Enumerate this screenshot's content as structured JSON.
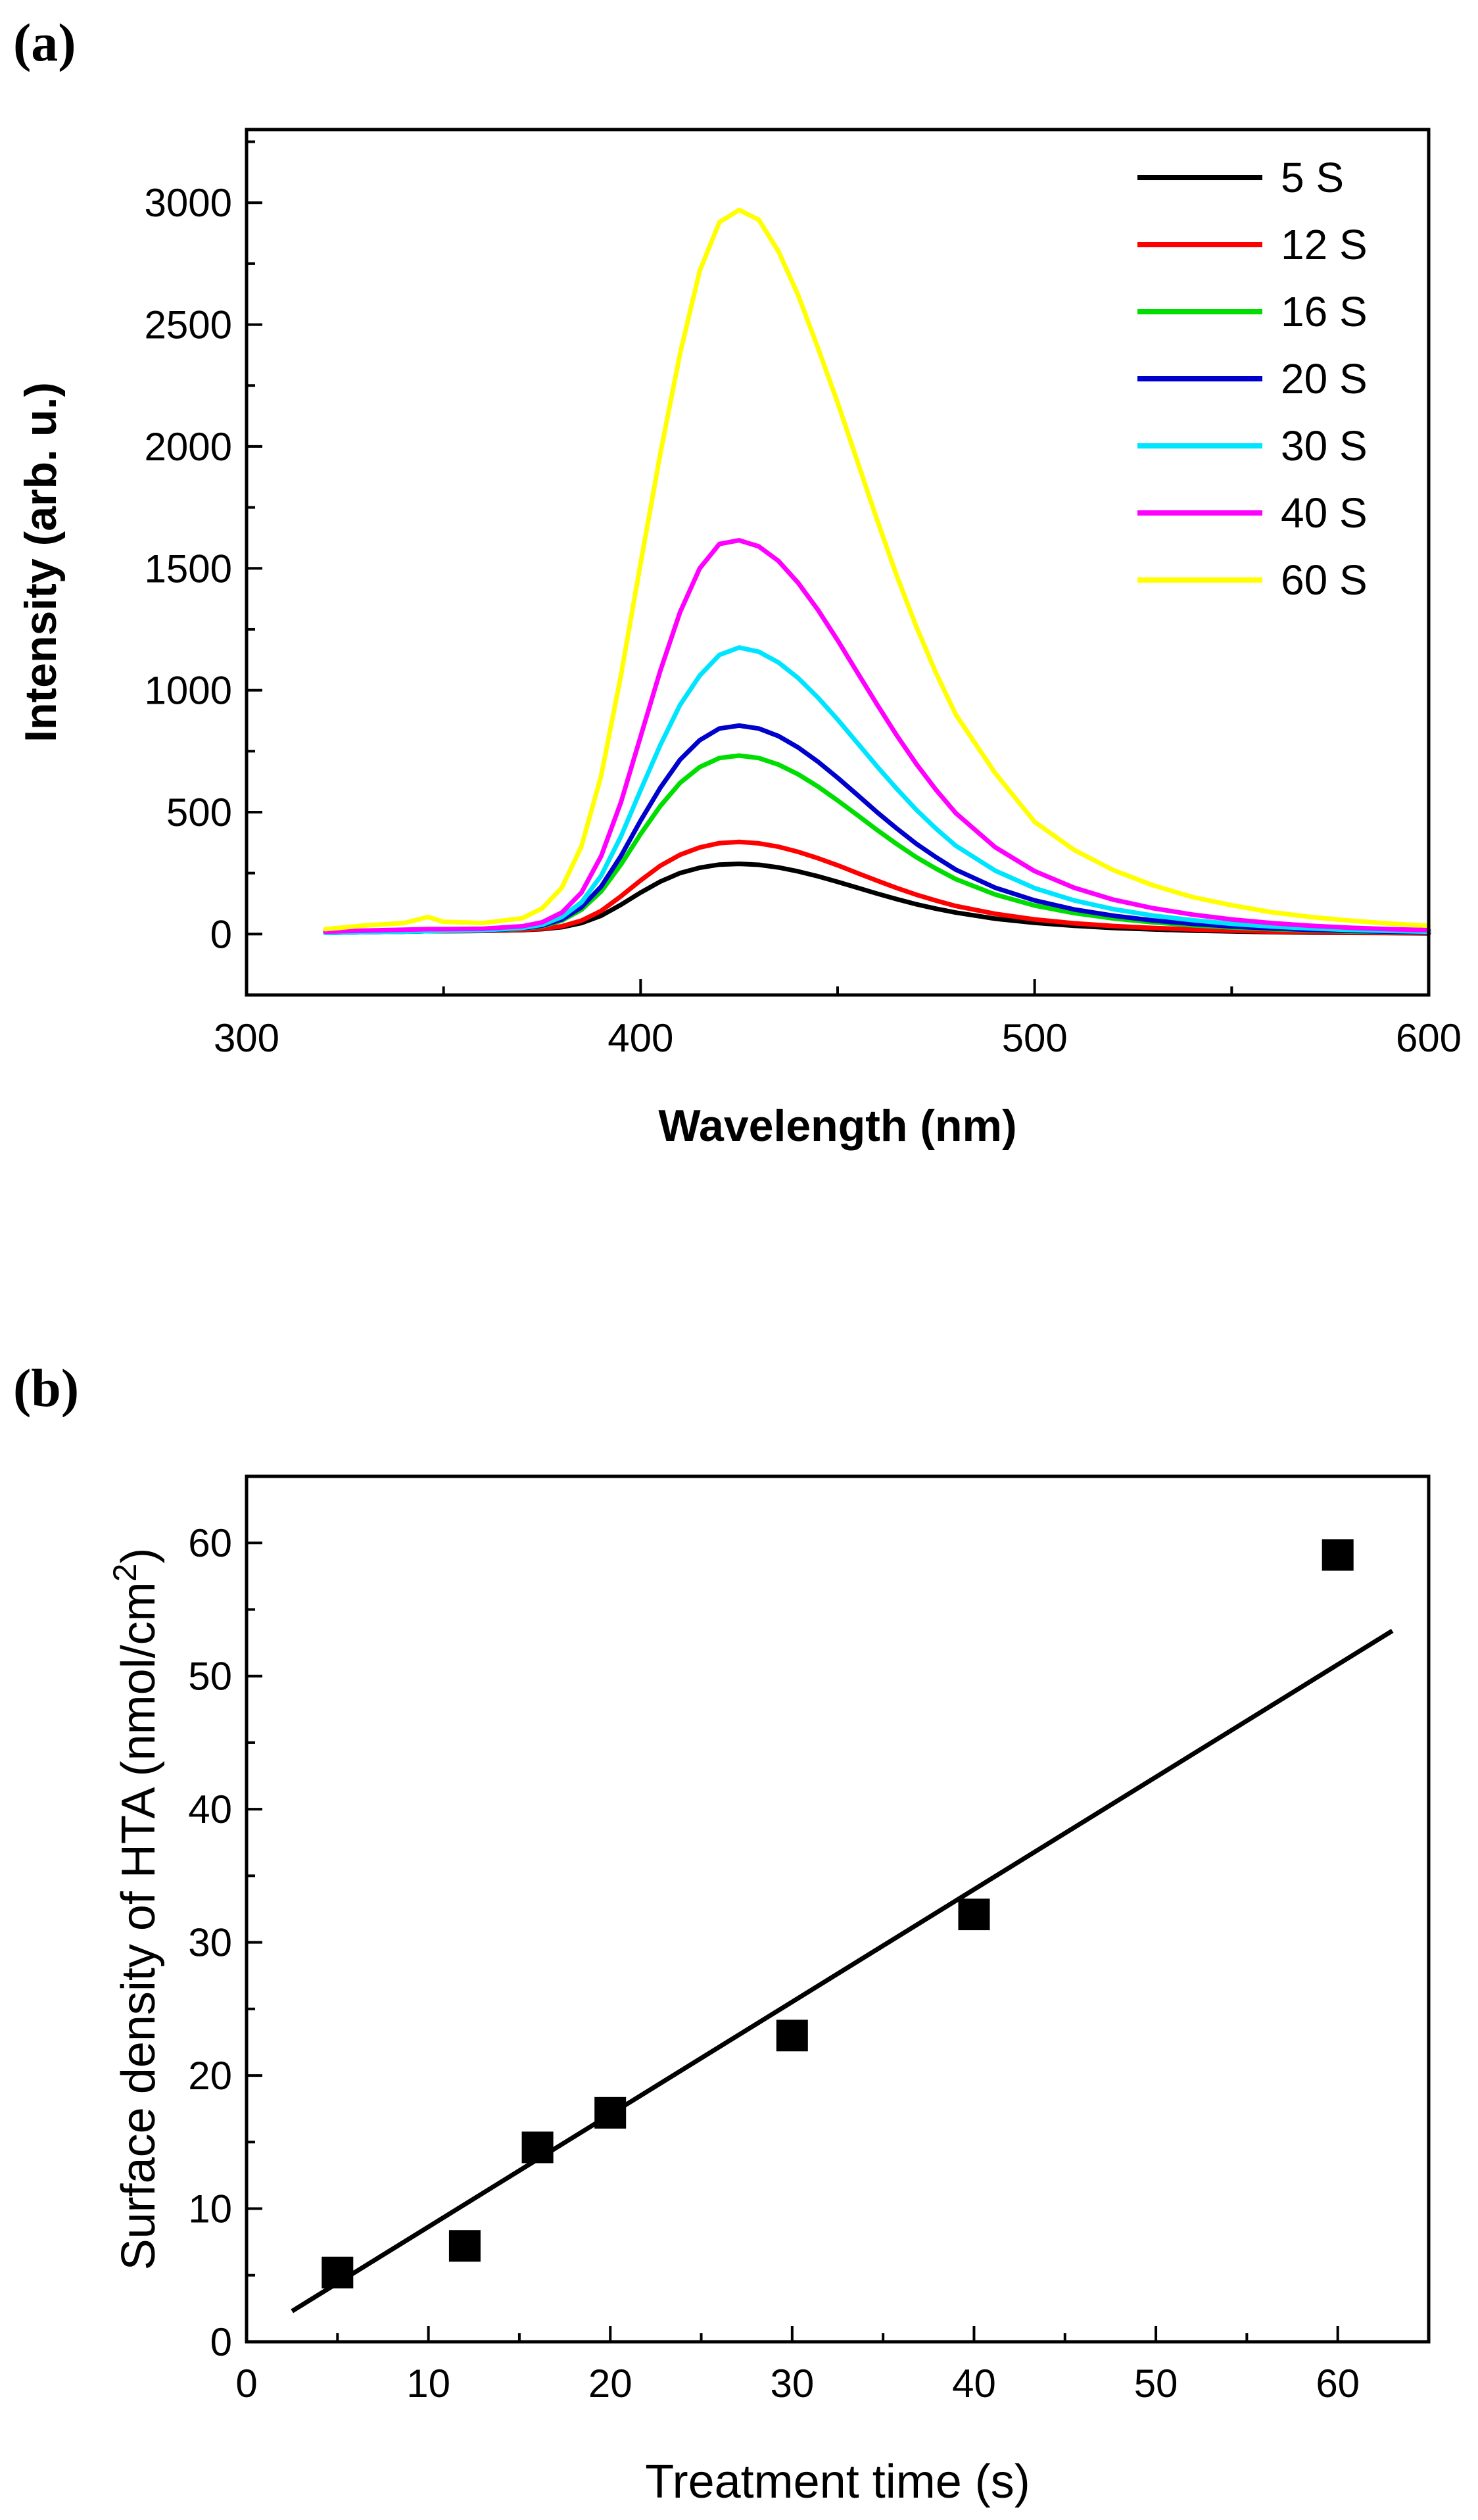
{
  "chart_data": [
    {
      "panel": "(a)",
      "type": "line",
      "title": "",
      "xlabel": "Wavelength (nm)",
      "ylabel": "Intensity (arb. u.)",
      "xlim": [
        300,
        600
      ],
      "ylim": [
        -250,
        3300
      ],
      "xticks": [
        300,
        400,
        500,
        600
      ],
      "xtick_labels": [
        "300",
        "400",
        "500",
        "600"
      ],
      "yticks": [
        0,
        500,
        1000,
        1500,
        2000,
        2500,
        3000
      ],
      "ytick_labels": [
        "0",
        "500",
        "1000",
        "1500",
        "2000",
        "2500",
        "3000"
      ],
      "legend_position": "top-right",
      "grid": false,
      "peak_wavelength": 425,
      "x": [
        320,
        330,
        340,
        346,
        350,
        360,
        370,
        375,
        380,
        385,
        390,
        395,
        400,
        405,
        410,
        415,
        420,
        425,
        430,
        435,
        440,
        445,
        450,
        455,
        460,
        465,
        470,
        475,
        480,
        490,
        500,
        510,
        520,
        530,
        540,
        550,
        560,
        570,
        580,
        590,
        600
      ],
      "series": [
        {
          "name": "5 S",
          "color": "#000000",
          "values": [
            5,
            8,
            10,
            12,
            12,
            13,
            16,
            20,
            28,
            45,
            75,
            120,
            170,
            215,
            250,
            272,
            285,
            288,
            284,
            273,
            257,
            237,
            214,
            190,
            166,
            143,
            122,
            104,
            88,
            63,
            46,
            34,
            25,
            19,
            14,
            11,
            8,
            6,
            5,
            4,
            3
          ]
        },
        {
          "name": "12 S",
          "color": "#ff0000",
          "values": [
            5,
            8,
            10,
            12,
            12,
            13,
            17,
            22,
            32,
            55,
            95,
            155,
            220,
            280,
            325,
            355,
            373,
            378,
            372,
            358,
            337,
            311,
            282,
            250,
            219,
            189,
            161,
            137,
            115,
            83,
            60,
            44,
            33,
            25,
            19,
            14,
            10,
            8,
            6,
            5,
            4
          ]
        },
        {
          "name": "16 S",
          "color": "#00dd00",
          "values": [
            5,
            8,
            10,
            12,
            13,
            15,
            22,
            32,
            55,
            100,
            175,
            285,
            410,
            525,
            620,
            685,
            722,
            732,
            722,
            695,
            655,
            605,
            548,
            488,
            427,
            369,
            315,
            268,
            225,
            162,
            117,
            86,
            64,
            48,
            36,
            27,
            20,
            15,
            11,
            9,
            7
          ]
        },
        {
          "name": "20 S",
          "color": "#0000cc",
          "values": [
            5,
            8,
            10,
            12,
            13,
            15,
            23,
            34,
            60,
            110,
            195,
            320,
            465,
            600,
            715,
            795,
            843,
            855,
            843,
            812,
            765,
            707,
            641,
            571,
            500,
            433,
            370,
            315,
            264,
            190,
            138,
            101,
            75,
            56,
            42,
            31,
            23,
            17,
            13,
            10,
            8
          ]
        },
        {
          "name": "30 S",
          "color": "#00e5ff",
          "values": [
            5,
            8,
            10,
            12,
            13,
            16,
            25,
            38,
            70,
            130,
            240,
            400,
            590,
            775,
            940,
            1060,
            1145,
            1175,
            1158,
            1114,
            1050,
            970,
            880,
            784,
            688,
            596,
            509,
            432,
            362,
            260,
            188,
            138,
            102,
            76,
            57,
            42,
            31,
            23,
            17,
            13,
            10
          ]
        },
        {
          "name": "40 S",
          "color": "#ff00ff",
          "values": [
            10,
            14,
            18,
            20,
            20,
            22,
            32,
            48,
            88,
            170,
            320,
            540,
            810,
            1080,
            1320,
            1500,
            1600,
            1615,
            1590,
            1530,
            1440,
            1330,
            1205,
            1073,
            942,
            815,
            697,
            591,
            496,
            356,
            258,
            190,
            141,
            106,
            80,
            60,
            45,
            34,
            26,
            20,
            16
          ]
        },
        {
          "name": "60 S",
          "color": "#ffff00",
          "values": [
            20,
            35,
            45,
            70,
            50,
            45,
            65,
            105,
            190,
            360,
            650,
            1060,
            1520,
            1970,
            2380,
            2720,
            2920,
            2970,
            2930,
            2800,
            2620,
            2405,
            2180,
            1940,
            1700,
            1470,
            1260,
            1070,
            900,
            660,
            460,
            345,
            262,
            200,
            152,
            118,
            90,
            70,
            55,
            43,
            34
          ]
        }
      ]
    },
    {
      "panel": "(b)",
      "type": "scatter",
      "title": "",
      "xlabel": "Treatment time (s)",
      "ylabel_prefix": "Surface density of HTA (nmol/cm",
      "ylabel_sup": "2",
      "ylabel_suffix": ")",
      "xlim": [
        0,
        65
      ],
      "ylim": [
        0,
        65
      ],
      "xticks": [
        0,
        10,
        20,
        30,
        40,
        50,
        60
      ],
      "xtick_labels": [
        "0",
        "10",
        "20",
        "30",
        "40",
        "50",
        "60"
      ],
      "yticks": [
        0,
        10,
        20,
        30,
        40,
        50,
        60
      ],
      "ytick_labels": [
        "0",
        "10",
        "20",
        "30",
        "40",
        "50",
        "60"
      ],
      "grid": false,
      "points": {
        "x": [
          5,
          12,
          16,
          20,
          30,
          40,
          60
        ],
        "y": [
          5.2,
          7.2,
          14.6,
          17.2,
          23.0,
          32.1,
          59.1
        ]
      },
      "fit_line": {
        "x": [
          2.5,
          63
        ],
        "y": [
          2.3,
          53.4
        ]
      }
    }
  ]
}
